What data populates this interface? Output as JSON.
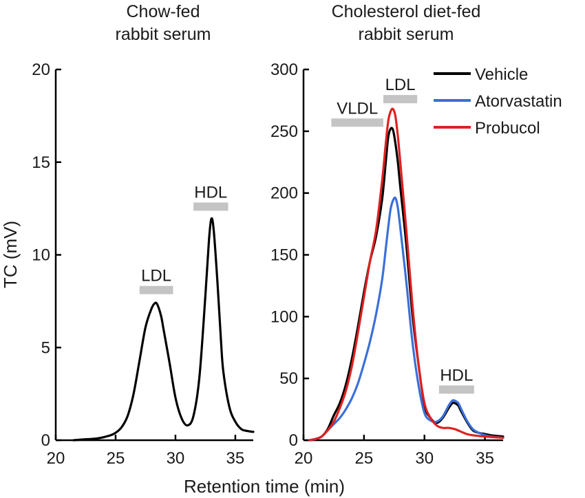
{
  "figure": {
    "ylabel": "TC (mV)",
    "xlabel": "Retention time (min)"
  },
  "chart_data": [
    {
      "type": "line",
      "title_lines": [
        "Chow-fed",
        "rabbit serum"
      ],
      "xlim": [
        20,
        36.5
      ],
      "ylim": [
        0,
        20
      ],
      "xticks": [
        20,
        25,
        30,
        35
      ],
      "yticks": [
        0,
        5,
        10,
        15,
        20
      ],
      "ylabel": "TC (mV)",
      "regions": [
        {
          "label": "LDL",
          "x_start": 27.0,
          "x_end": 29.8,
          "y": 8.1
        },
        {
          "label": "HDL",
          "x_start": 31.5,
          "x_end": 34.4,
          "y": 12.6
        }
      ],
      "series": [
        {
          "name": "Chow-fed",
          "color": "#000000",
          "x": [
            21.5,
            22.5,
            23.5,
            24.5,
            25.0,
            25.5,
            26.0,
            26.5,
            27.0,
            27.5,
            28.0,
            28.3,
            28.5,
            28.8,
            29.0,
            29.5,
            30.0,
            30.5,
            31.0,
            31.5,
            32.0,
            32.5,
            32.8,
            33.0,
            33.2,
            33.5,
            33.8,
            34.0,
            34.5,
            35.0,
            35.5,
            36.0,
            36.5
          ],
          "values": [
            0.0,
            0.05,
            0.1,
            0.25,
            0.4,
            0.7,
            1.3,
            2.5,
            4.3,
            6.1,
            7.1,
            7.4,
            7.3,
            6.7,
            6.0,
            4.2,
            2.3,
            1.2,
            0.8,
            1.3,
            3.4,
            7.8,
            10.8,
            11.95,
            11.3,
            8.6,
            5.4,
            3.7,
            1.8,
            1.0,
            0.6,
            0.5,
            0.45
          ]
        }
      ]
    },
    {
      "type": "line",
      "title_lines": [
        "Cholesterol diet-fed",
        "rabbit serum"
      ],
      "xlim": [
        20,
        36.5
      ],
      "ylim": [
        0,
        300
      ],
      "xticks": [
        20,
        25,
        30,
        35
      ],
      "yticks": [
        0,
        50,
        100,
        150,
        200,
        250,
        300
      ],
      "regions": [
        {
          "label": "VLDL",
          "x_start": 22.3,
          "x_end": 26.6,
          "y": 257
        },
        {
          "label": "LDL",
          "x_start": 26.6,
          "x_end": 29.4,
          "y": 276
        },
        {
          "label": "HDL",
          "x_start": 31.2,
          "x_end": 34.1,
          "y": 41
        }
      ],
      "series": [
        {
          "name": "Vehicle",
          "color": "#000000",
          "x": [
            20.5,
            21.0,
            21.5,
            22.0,
            22.5,
            23.0,
            23.5,
            24.0,
            24.5,
            25.0,
            25.5,
            26.0,
            26.5,
            26.8,
            27.0,
            27.2,
            27.4,
            27.6,
            27.8,
            28.0,
            28.5,
            29.0,
            29.5,
            30.0,
            30.5,
            31.0,
            31.5,
            32.0,
            32.3,
            32.5,
            32.8,
            33.0,
            33.5,
            34.0,
            34.5,
            35.0,
            35.5,
            36.5
          ],
          "values": [
            0,
            1,
            3,
            9,
            20,
            30,
            45,
            66,
            92,
            120,
            145,
            165,
            195,
            225,
            245,
            252,
            251,
            240,
            225,
            205,
            158,
            102,
            62,
            28,
            18,
            14,
            18,
            26,
            30,
            30,
            28,
            24,
            15,
            8,
            6,
            5,
            4,
            3
          ]
        },
        {
          "name": "Atorvastatin",
          "color": "#3b6fd8",
          "x": [
            20.5,
            21.0,
            21.5,
            22.0,
            22.5,
            23.0,
            23.5,
            24.0,
            24.5,
            25.0,
            25.5,
            26.0,
            26.5,
            26.8,
            27.0,
            27.2,
            27.4,
            27.6,
            27.8,
            28.0,
            28.5,
            29.0,
            29.5,
            30.0,
            30.5,
            31.0,
            31.5,
            32.0,
            32.3,
            32.5,
            32.8,
            33.0,
            33.5,
            34.0,
            34.5,
            35.0,
            35.5,
            36.5
          ],
          "values": [
            0,
            1,
            3,
            8,
            13,
            18,
            25,
            34,
            46,
            62,
            80,
            102,
            130,
            155,
            172,
            187,
            194,
            196,
            188,
            172,
            128,
            80,
            45,
            22,
            16,
            15,
            19,
            28,
            32,
            32,
            30,
            26,
            16,
            9,
            6,
            4,
            3,
            2
          ]
        },
        {
          "name": "Probucol",
          "color": "#e02020",
          "x": [
            20.5,
            21.0,
            21.5,
            22.0,
            22.5,
            23.0,
            23.5,
            24.0,
            24.5,
            25.0,
            25.5,
            26.0,
            26.5,
            26.8,
            27.0,
            27.2,
            27.4,
            27.6,
            27.8,
            28.0,
            28.5,
            29.0,
            29.5,
            30.0,
            30.5,
            31.0,
            31.5,
            32.0,
            32.5,
            33.0,
            33.5,
            34.0,
            35.0,
            36.5
          ],
          "values": [
            0,
            1,
            3,
            8,
            15,
            26,
            40,
            60,
            87,
            116,
            145,
            170,
            210,
            240,
            258,
            266,
            268,
            262,
            246,
            225,
            170,
            110,
            62,
            30,
            18,
            12,
            10,
            10,
            9,
            7,
            5,
            4,
            3,
            2
          ]
        }
      ],
      "legend": {
        "placement": "top-right",
        "entries": [
          {
            "label": "Vehicle",
            "color": "#000000"
          },
          {
            "label": "Atorvastatin",
            "color": "#3b6fd8"
          },
          {
            "label": "Probucol",
            "color": "#e02020"
          }
        ]
      }
    }
  ],
  "colors": {
    "region_bar": "#c4c4c4",
    "axis": "#000000"
  }
}
